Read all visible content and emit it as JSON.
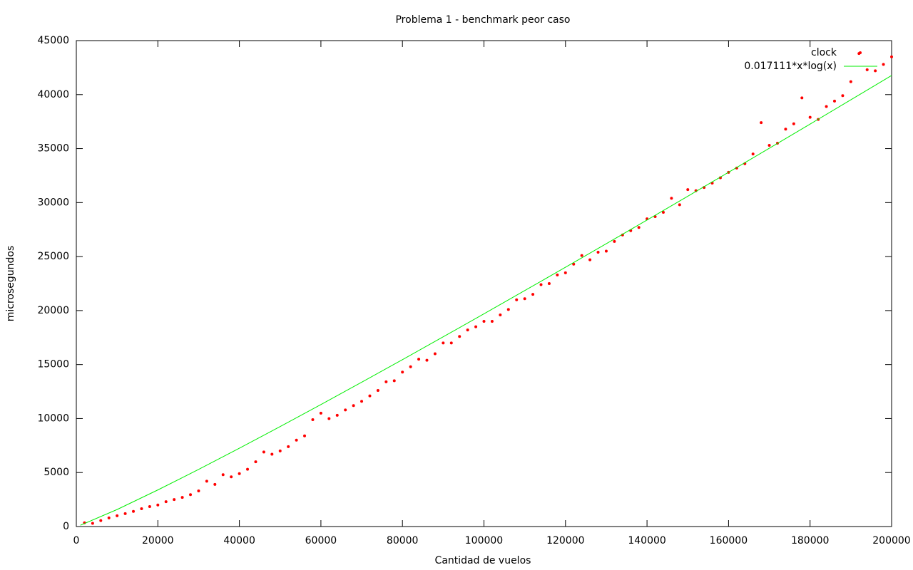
{
  "chart_data": {
    "type": "scatter",
    "title": "Problema 1 - benchmark peor caso",
    "xlabel": "Cantidad de vuelos",
    "ylabel": "microsegundos",
    "xlim": [
      0,
      200000
    ],
    "ylim": [
      0,
      45000
    ],
    "xticks": [
      0,
      20000,
      40000,
      60000,
      80000,
      100000,
      120000,
      140000,
      160000,
      180000,
      200000
    ],
    "yticks": [
      0,
      5000,
      10000,
      15000,
      20000,
      25000,
      30000,
      35000,
      40000,
      45000
    ],
    "legend": "upper-right",
    "series": [
      {
        "name": "clock",
        "color": "#ff0000",
        "mark": "point",
        "x": [
          2000,
          4000,
          6000,
          8000,
          10000,
          12000,
          14000,
          16000,
          18000,
          20000,
          22000,
          24000,
          26000,
          28000,
          30000,
          32000,
          34000,
          36000,
          38000,
          40000,
          42000,
          44000,
          46000,
          48000,
          50000,
          52000,
          54000,
          56000,
          58000,
          60000,
          62000,
          64000,
          66000,
          68000,
          70000,
          72000,
          74000,
          76000,
          78000,
          80000,
          82000,
          84000,
          86000,
          88000,
          90000,
          92000,
          94000,
          96000,
          98000,
          100000,
          102000,
          104000,
          106000,
          108000,
          110000,
          112000,
          114000,
          116000,
          118000,
          120000,
          122000,
          124000,
          126000,
          128000,
          130000,
          132000,
          134000,
          136000,
          138000,
          140000,
          142000,
          144000,
          146000,
          148000,
          150000,
          152000,
          154000,
          156000,
          158000,
          160000,
          162000,
          164000,
          166000,
          168000,
          170000,
          172000,
          174000,
          176000,
          178000,
          180000,
          182000,
          184000,
          186000,
          188000,
          190000,
          192000,
          194000,
          196000,
          198000,
          200000
        ],
        "values": [
          350,
          300,
          550,
          800,
          1000,
          1200,
          1400,
          1650,
          1850,
          2000,
          2300,
          2500,
          2700,
          2950,
          3300,
          4200,
          3900,
          4800,
          4600,
          4900,
          5300,
          6000,
          6900,
          6700,
          7000,
          7400,
          8000,
          8400,
          9900,
          10500,
          10000,
          10300,
          10800,
          11200,
          11600,
          12100,
          12600,
          13400,
          13500,
          14300,
          14800,
          15500,
          15400,
          16000,
          17000,
          17000,
          17600,
          18200,
          18500,
          19000,
          19000,
          19600,
          20100,
          21000,
          21100,
          21500,
          22400,
          22500,
          23300,
          23500,
          24300,
          25100,
          24700,
          25400,
          25500,
          26400,
          27000,
          27400,
          27700,
          28500,
          28700,
          29100,
          30400,
          29800,
          31200,
          31100,
          31400,
          31800,
          32300,
          32800,
          33200,
          33600,
          34500,
          37400,
          35300,
          35500,
          36800,
          37300,
          39700,
          37900,
          37700,
          38900,
          39400,
          39900,
          41200,
          43800,
          42300,
          42200,
          42800,
          43500
        ]
      },
      {
        "name": "0.017111*x*log(x)",
        "color": "#00ee00",
        "mark": "line",
        "x": [
          1000,
          10000,
          20000,
          30000,
          40000,
          50000,
          60000,
          70000,
          80000,
          90000,
          100000,
          110000,
          120000,
          130000,
          140000,
          150000,
          160000,
          170000,
          180000,
          190000,
          200000
        ],
        "values": [
          118,
          1576,
          3389,
          5292,
          7253,
          9257,
          11295,
          13363,
          15454,
          17568,
          19700,
          21849,
          24014,
          26193,
          28386,
          30590,
          32806,
          35033,
          37270,
          39516,
          41771
        ]
      }
    ]
  }
}
